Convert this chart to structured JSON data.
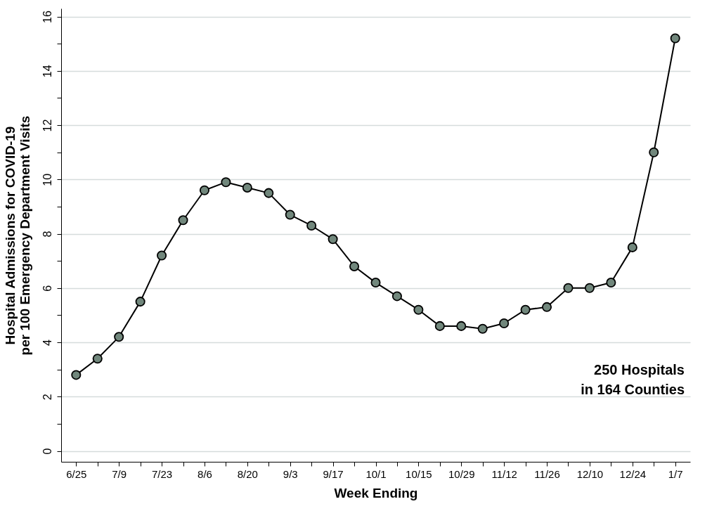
{
  "chart_data": {
    "type": "line",
    "xlabel": "Week Ending",
    "ylabel": "Hospital Admissions for COVID-19\nper 100 Emergency Department Visits",
    "categories": [
      "6/25",
      null,
      "7/9",
      null,
      "7/23",
      null,
      "8/6",
      null,
      "8/20",
      null,
      "9/3",
      null,
      "9/17",
      null,
      "10/1",
      null,
      "10/15",
      null,
      "10/29",
      null,
      "11/12",
      null,
      "11/26",
      null,
      "12/10",
      null,
      "12/24",
      null,
      "1/7"
    ],
    "series": [
      {
        "color": "#71877c",
        "values": [
          2.8,
          3.4,
          4.2,
          5.5,
          7.2,
          8.5,
          9.6,
          9.9,
          9.7,
          9.5,
          8.7,
          8.3,
          7.8,
          6.8,
          6.2,
          5.7,
          5.2,
          4.6,
          4.6,
          4.5,
          4.7,
          5.2,
          5.3,
          6.0,
          6.0,
          6.2,
          7.5,
          11.0,
          15.2
        ]
      }
    ],
    "ylim": [
      -0.4,
      16.3
    ],
    "yticks": [
      0,
      {
        "value": 1,
        "label": null
      },
      2,
      {
        "value": 3,
        "label": null
      },
      4,
      {
        "value": 5,
        "label": null
      },
      6,
      {
        "value": 7,
        "label": null
      },
      8,
      {
        "value": 9,
        "label": null
      },
      10,
      {
        "value": 11,
        "label": null
      },
      12,
      {
        "value": 13,
        "label": null
      },
      14,
      {
        "value": 15,
        "label": null
      },
      16
    ],
    "grid": "y",
    "marker": "circle",
    "line_style": "solid",
    "annotations": [
      "250 Hospitals\nin 164 Counties"
    ]
  }
}
